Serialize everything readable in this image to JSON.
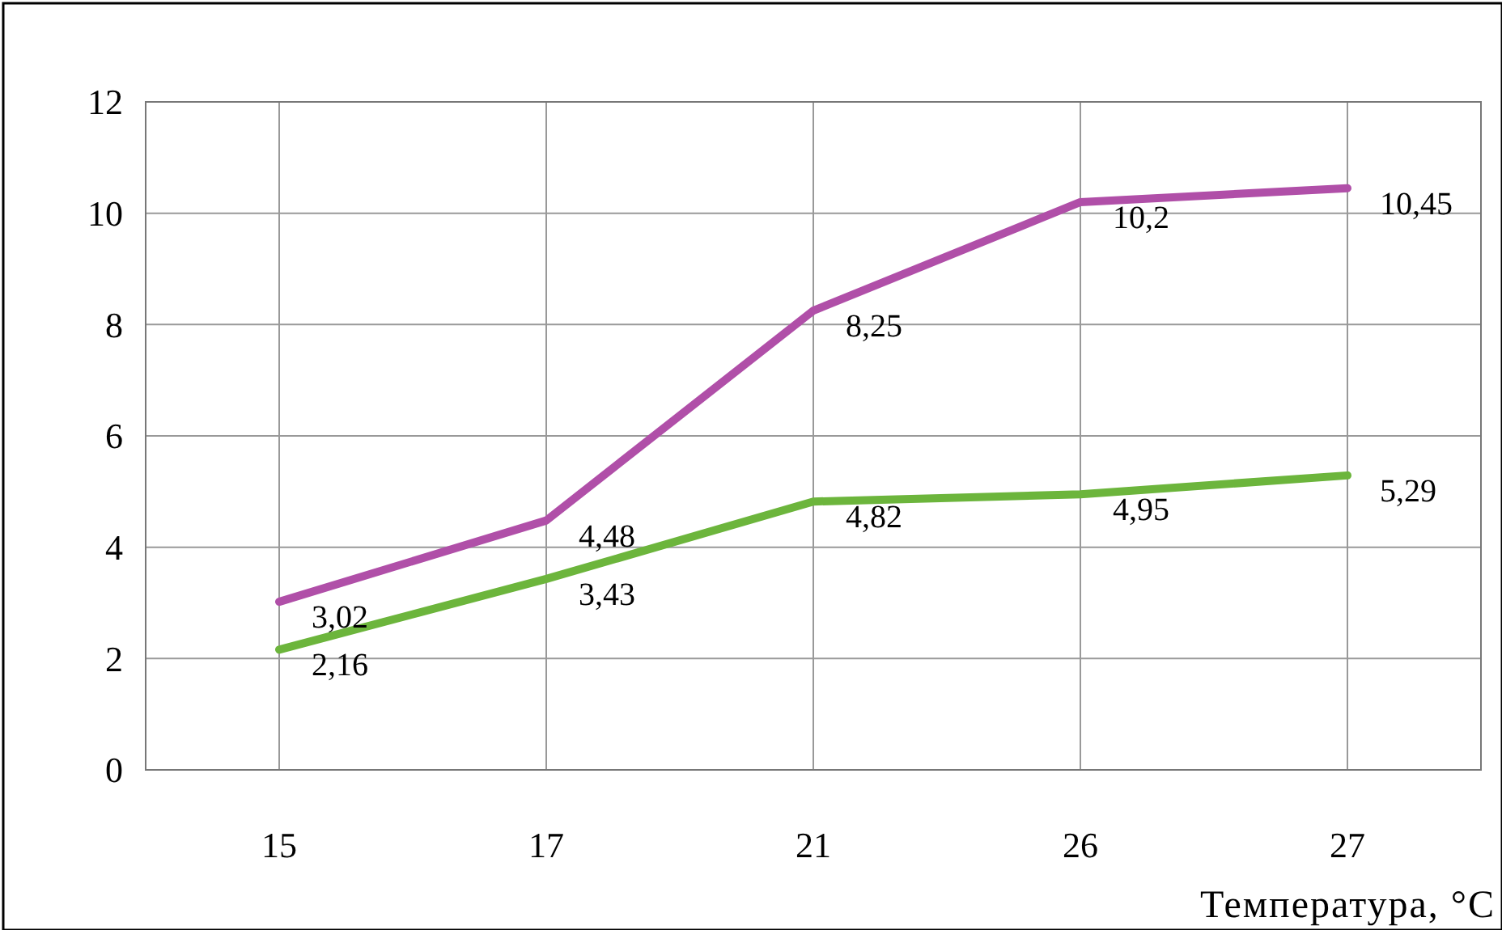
{
  "chart_data": {
    "type": "line",
    "xlabel": "Температура, °C",
    "categories": [
      "15",
      "17",
      "21",
      "26",
      "27"
    ],
    "series": [
      {
        "color": "#b04fa8",
        "values": [
          3.02,
          4.48,
          8.25,
          10.2,
          10.45
        ],
        "value_labels": [
          "3,02",
          "4,48",
          "8,25",
          "10,2",
          "10,45"
        ]
      },
      {
        "color": "#6cb53c",
        "values": [
          2.16,
          3.43,
          4.82,
          4.95,
          5.29
        ],
        "value_labels": [
          "2,16",
          "3,43",
          "4,82",
          "4,95",
          "5,29"
        ]
      }
    ],
    "ylim": [
      0,
      12
    ],
    "yticks": [
      0,
      2,
      4,
      6,
      8,
      10,
      12
    ],
    "grid": true,
    "marker": "none",
    "line_style": "solid"
  }
}
